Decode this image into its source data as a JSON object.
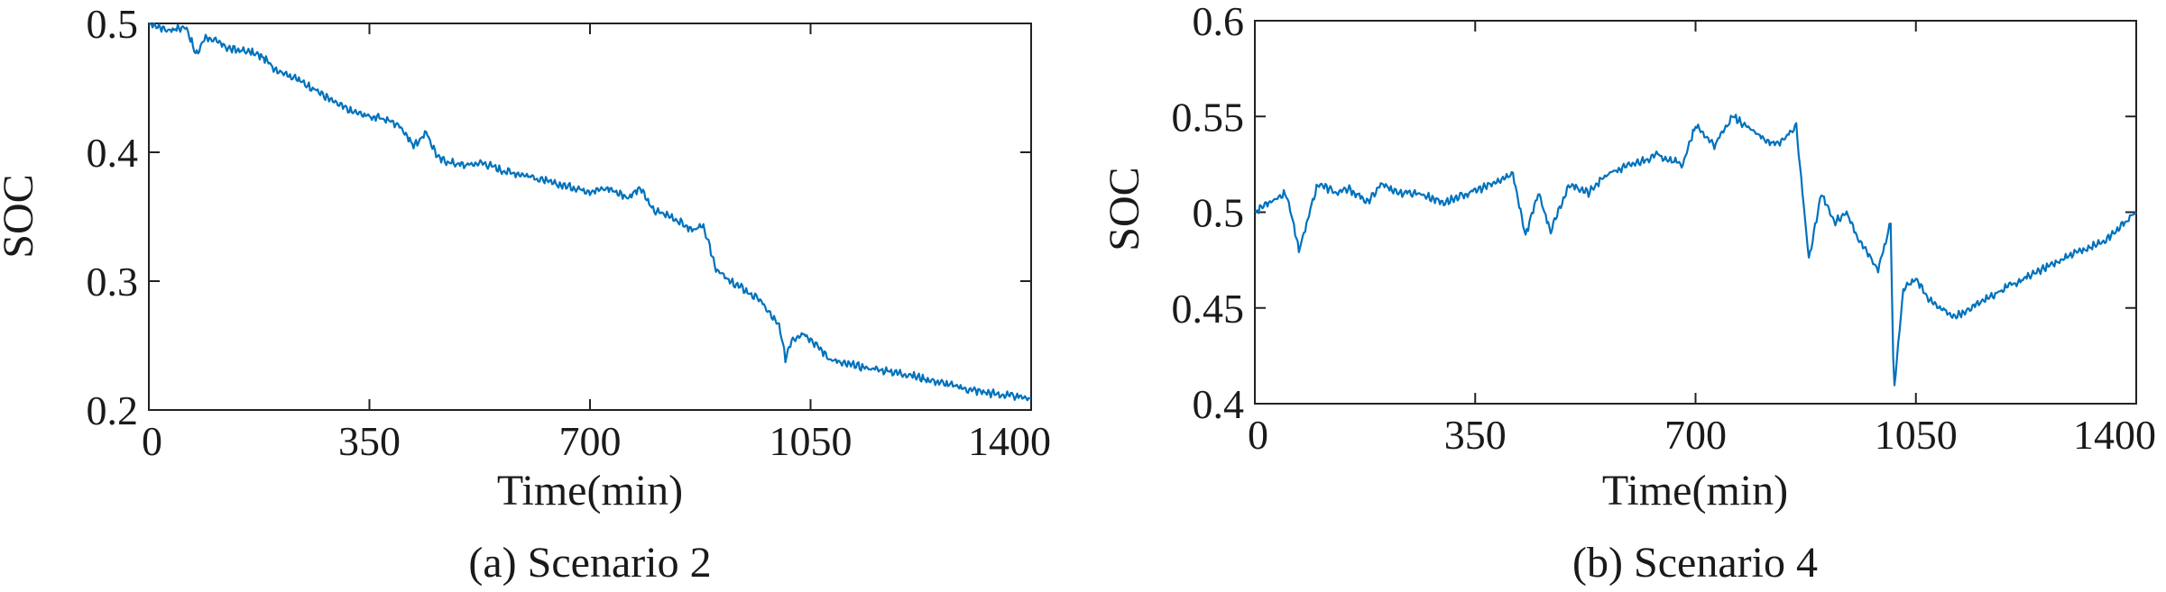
{
  "chart_data": [
    {
      "type": "line",
      "caption": "(a)  Scenario 2",
      "xlabel": "Time(min)",
      "ylabel": "SOC",
      "xlim": [
        0,
        1400
      ],
      "ylim": [
        0.2,
        0.5
      ],
      "xticks": [
        0,
        350,
        700,
        1050,
        1400
      ],
      "xtick_labels": [
        "0",
        "350",
        "700",
        "1050",
        "1400"
      ],
      "yticks": [
        0.2,
        0.3,
        0.4,
        0.5
      ],
      "ytick_labels": [
        "0.2",
        "0.3",
        "0.4",
        "0.5"
      ],
      "grid": false,
      "series": [
        {
          "color": "#0072BD",
          "x": [
            0,
            30,
            60,
            75,
            90,
            110,
            130,
            160,
            180,
            200,
            230,
            260,
            290,
            320,
            350,
            380,
            400,
            420,
            440,
            460,
            480,
            500,
            530,
            560,
            600,
            640,
            680,
            700,
            730,
            760,
            780,
            800,
            830,
            860,
            880,
            900,
            920,
            940,
            970,
            1000,
            1010,
            1020,
            1040,
            1060,
            1080,
            1100,
            1150,
            1200,
            1250,
            1300,
            1350,
            1380,
            1400
          ],
          "y": [
            0.5,
            0.495,
            0.497,
            0.475,
            0.49,
            0.485,
            0.48,
            0.478,
            0.474,
            0.465,
            0.458,
            0.45,
            0.44,
            0.432,
            0.428,
            0.425,
            0.42,
            0.405,
            0.415,
            0.395,
            0.392,
            0.39,
            0.392,
            0.386,
            0.382,
            0.376,
            0.372,
            0.37,
            0.372,
            0.365,
            0.372,
            0.355,
            0.35,
            0.34,
            0.342,
            0.31,
            0.3,
            0.295,
            0.285,
            0.265,
            0.24,
            0.255,
            0.26,
            0.25,
            0.24,
            0.236,
            0.232,
            0.228,
            0.222,
            0.216,
            0.212,
            0.21,
            0.209
          ]
        }
      ]
    },
    {
      "type": "line",
      "caption": "(b)  Scenario 4",
      "xlabel": "Time(min)",
      "ylabel": "SOC",
      "xlim": [
        0,
        1400
      ],
      "ylim": [
        0.4,
        0.6
      ],
      "xticks": [
        0,
        350,
        700,
        1050,
        1400
      ],
      "xtick_labels": [
        "0",
        "350",
        "700",
        "1050",
        "1400"
      ],
      "yticks": [
        0.4,
        0.45,
        0.5,
        0.55,
        0.6
      ],
      "ytick_labels": [
        "0.4",
        "0.45",
        "0.5",
        "0.55",
        "0.6"
      ],
      "grid": false,
      "series": [
        {
          "color": "#0072BD",
          "x": [
            0,
            20,
            50,
            70,
            100,
            130,
            150,
            180,
            200,
            230,
            260,
            300,
            340,
            380,
            410,
            430,
            450,
            470,
            500,
            530,
            560,
            600,
            640,
            680,
            700,
            730,
            760,
            780,
            800,
            830,
            860,
            880,
            900,
            920,
            940,
            960,
            990,
            1010,
            1015,
            1030,
            1050,
            1070,
            1090,
            1110,
            1150,
            1200,
            1250,
            1300,
            1350,
            1400
          ],
          "y": [
            0.5,
            0.505,
            0.51,
            0.48,
            0.515,
            0.51,
            0.512,
            0.505,
            0.515,
            0.51,
            0.51,
            0.505,
            0.51,
            0.515,
            0.52,
            0.488,
            0.51,
            0.49,
            0.515,
            0.51,
            0.52,
            0.525,
            0.53,
            0.525,
            0.545,
            0.535,
            0.55,
            0.545,
            0.54,
            0.535,
            0.545,
            0.475,
            0.51,
            0.495,
            0.5,
            0.485,
            0.47,
            0.495,
            0.405,
            0.46,
            0.465,
            0.455,
            0.45,
            0.445,
            0.452,
            0.462,
            0.47,
            0.478,
            0.485,
            0.5
          ]
        }
      ]
    }
  ]
}
